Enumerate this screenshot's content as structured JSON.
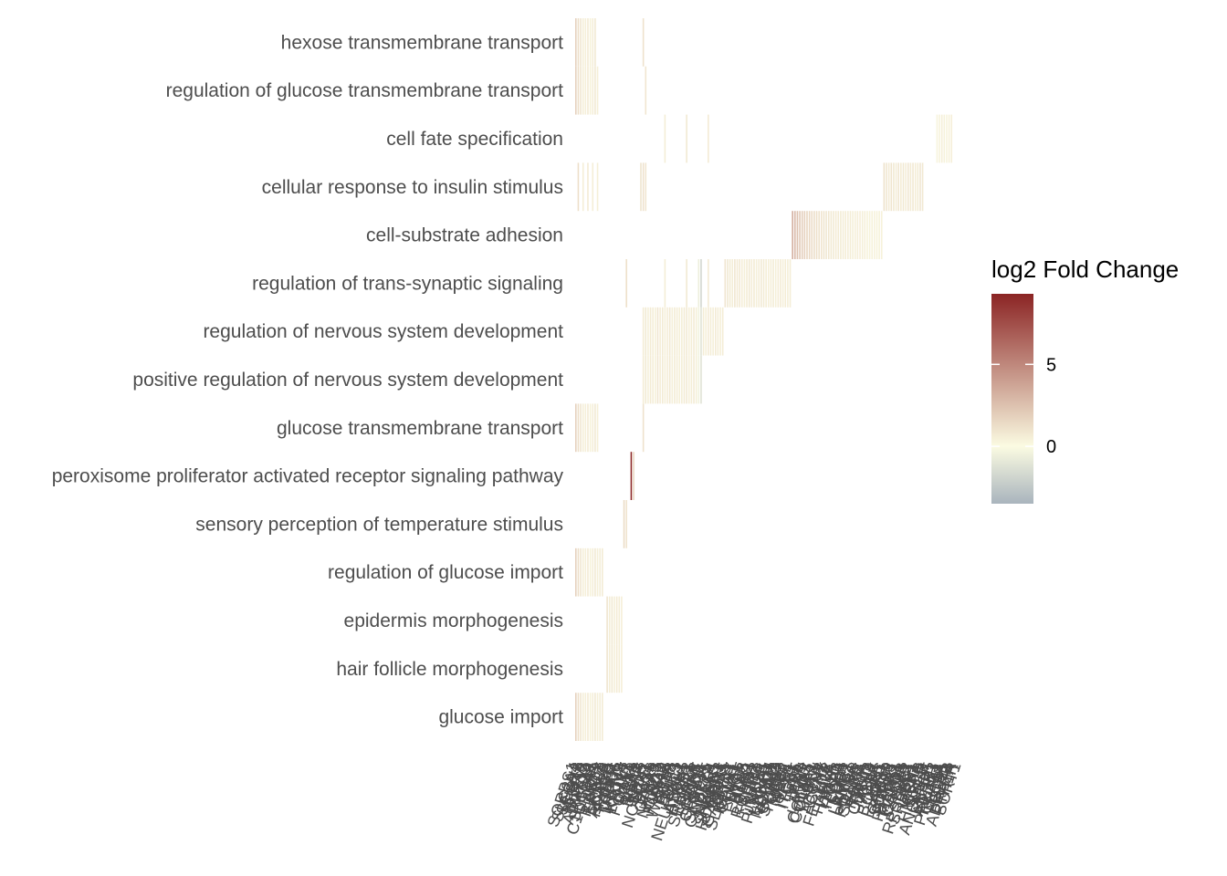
{
  "chart_data": {
    "type": "heatmap",
    "title": "",
    "xlabel": "",
    "ylabel": "",
    "legend": {
      "title": "log2 Fold Change",
      "position": "right",
      "ticks": [
        0,
        5
      ],
      "range": [
        -3.5,
        9.3
      ],
      "colors": {
        "low": "#a9b4bd",
        "mid": "#fbfbe2",
        "high": "#8b2424"
      }
    },
    "grid": false,
    "rows": [
      "hexose transmembrane transport",
      "regulation of glucose transmembrane transport",
      "cell fate specification",
      "cellular response to insulin stimulus",
      "cell-substrate adhesion",
      "regulation of trans-synaptic signaling",
      "regulation of nervous system development",
      "positive regulation of nervous system development",
      "glucose transmembrane transport",
      "peroxisome proliferator activated receptor signaling pathway",
      "sensory perception of temperature stimulus",
      "regulation of glucose import",
      "epidermis morphogenesis",
      "hair follicle morphogenesis",
      "glucose import"
    ],
    "columns": [
      "SORBS1",
      "SLC2A4",
      "SESN2",
      "SIRT6",
      "NR4A3",
      "IRS2",
      "ADIPOQ",
      "RAB10",
      "SLC2A1",
      "C1QTNF1",
      "INSR",
      "AKT2",
      "PRKCZ",
      "ERBB3",
      "CAV3",
      "ACACB",
      "PPARG",
      "FABP4",
      "CD36",
      "TRPV1",
      "TRPM8",
      "KRT14",
      "KRT17",
      "LHX2",
      "FOXN1",
      "SOX9",
      "LEF1",
      "MSX2",
      "EGFR",
      "KRT5",
      "SOX2",
      "NOTCH1",
      "HES1",
      "PAX6",
      "GATA3",
      "TBX3",
      "NKX2-1",
      "OLIG2",
      "FOXA2",
      "SHH",
      "WNT3A",
      "FGF8",
      "BMP4",
      "GLI3",
      "DLL1",
      "NEUROG2",
      "ASCL1",
      "ATOH1",
      "HAND2",
      "ISL1",
      "SEMA3A",
      "NTRK2",
      "BDNF",
      "GRIN1",
      "GRIN2A",
      "SYT1",
      "SNAP25",
      "CAMK2A",
      "DLG4",
      "NRXN1",
      "NLGN1",
      "SHANK3",
      "HOMER1",
      "GRM5",
      "GABRA1",
      "GAD1",
      "SLC17A7",
      "NPTX1",
      "CPLX1",
      "RIMS1",
      "NGF",
      "NTF3",
      "RTN4",
      "MAG",
      "EPHA4",
      "ROBO1",
      "SLIT2",
      "NTN1",
      "DCC",
      "UNC5B",
      "PLXNA1",
      "NRP1",
      "L1CAM",
      "NCAM1",
      "CDH2",
      "GAP43",
      "STMN2",
      "TUBB3",
      "MAP2",
      "NEFL",
      "SPP1",
      "FN1",
      "ITGB1",
      "ITGA5",
      "VCL",
      "TLN1",
      "PXN",
      "PTK2",
      "LAMA5",
      "COL1A1",
      "COL4A1",
      "THBS1",
      "VTN",
      "CCN2",
      "ACTN1",
      "ZYX",
      "FERMT2",
      "ILK",
      "PARVA",
      "LIMS1",
      "ITGA6",
      "ITGB4",
      "CD44",
      "SDC4",
      "EMP2",
      "LAMB1",
      "LAMC1",
      "TNC",
      "POSTN",
      "SPARC",
      "FLNA",
      "RHOA",
      "RAC1",
      "CDC42",
      "MYH9",
      "ABL1",
      "CRK",
      "BCAR1",
      "SRC",
      "PIK3R1",
      "IRS1",
      "GRB10",
      "SOCS3",
      "PTPN1",
      "PTPN11",
      "MAPK1",
      "FOXO1",
      "GSK3B",
      "PDK1",
      "TSC2",
      "RPS6KB1",
      "SREBF1",
      "LPIN1",
      "PCK1",
      "G6PC",
      "HMGCR",
      "LDLR",
      "ANGPTL4",
      "APOE",
      "ENPP1",
      "ADRB3",
      "EDN1",
      "PRKAA1",
      "CPT1A",
      "UCP1",
      "FGF21",
      "LEPR",
      "ADRA2A",
      "PTH1R",
      "SORT1"
    ],
    "cells": [
      {
        "row": 0,
        "cols": [
          0,
          1,
          2,
          3,
          4,
          5,
          6,
          7,
          8,
          28
        ],
        "values": [
          1.8,
          1.2,
          0.9,
          0.6,
          0.5,
          0.7,
          0.4,
          0.6,
          0.8,
          1.1
        ]
      },
      {
        "row": 1,
        "cols": [
          0,
          1,
          2,
          3,
          4,
          5,
          6,
          7,
          8,
          9,
          29
        ],
        "values": [
          1.8,
          1.2,
          0.9,
          0.6,
          0.5,
          0.7,
          0.4,
          0.6,
          0.8,
          0.5,
          0.9
        ]
      },
      {
        "row": 2,
        "cols": [
          37,
          46,
          55,
          150,
          151,
          152,
          153,
          154,
          155,
          156
        ],
        "values": [
          0.6,
          0.8,
          0.7,
          0.3,
          0.4,
          0.5,
          0.4,
          0.3,
          0.4,
          0.5
        ]
      },
      {
        "row": 3,
        "cols": [
          1,
          3,
          5,
          7,
          9,
          27,
          28,
          29,
          128,
          129,
          130,
          131,
          132,
          133,
          134,
          135,
          136,
          137,
          138,
          139,
          140,
          141,
          142,
          143,
          144
        ],
        "values": [
          1.2,
          0.6,
          0.7,
          0.6,
          0.5,
          1.0,
          1.1,
          0.9,
          1.1,
          0.9,
          0.7,
          1.0,
          0.8,
          0.6,
          0.9,
          0.7,
          0.8,
          0.6,
          0.9,
          0.7,
          0.8,
          0.6,
          0.7,
          0.9,
          0.8
        ]
      },
      {
        "row": 4,
        "cols": [
          90,
          91,
          92,
          93,
          94,
          95,
          96,
          97,
          98,
          99,
          100,
          101,
          102,
          103,
          104,
          105,
          106,
          107,
          108,
          109,
          110,
          111,
          112,
          113,
          114,
          115,
          116,
          117,
          118,
          119,
          120,
          121,
          122,
          123,
          124,
          125,
          126,
          127
        ],
        "values": [
          3.4,
          2.8,
          2.5,
          2.2,
          2.0,
          1.8,
          1.6,
          1.5,
          1.4,
          1.3,
          1.2,
          1.1,
          1.0,
          1.0,
          0.9,
          0.9,
          0.8,
          0.8,
          0.7,
          0.7,
          0.7,
          0.6,
          0.6,
          0.6,
          0.6,
          0.5,
          0.5,
          0.5,
          0.5,
          0.5,
          0.5,
          0.4,
          0.4,
          0.4,
          0.4,
          0.4,
          0.4,
          0.4
        ]
      },
      {
        "row": 5,
        "cols": [
          21,
          37,
          46,
          51,
          52,
          55,
          62,
          63,
          64,
          65,
          66,
          67,
          68,
          69,
          70,
          71,
          72,
          73,
          74,
          75,
          76,
          77,
          78,
          79,
          80,
          81,
          82,
          83,
          84,
          85,
          86,
          87,
          88,
          89
        ],
        "values": [
          1.2,
          0.6,
          0.8,
          -0.6,
          -1.8,
          0.7,
          0.9,
          0.8,
          0.7,
          0.6,
          0.9,
          0.7,
          0.8,
          0.6,
          0.5,
          0.7,
          0.8,
          0.6,
          0.7,
          0.5,
          0.6,
          0.8,
          0.7,
          0.6,
          0.5,
          0.6,
          0.7,
          0.5,
          0.6,
          0.7,
          0.5,
          0.6,
          0.5,
          0.6
        ]
      },
      {
        "row": 6,
        "cols": [
          28,
          29,
          30,
          31,
          32,
          33,
          34,
          35,
          36,
          37,
          38,
          39,
          40,
          41,
          42,
          43,
          44,
          45,
          46,
          47,
          48,
          49,
          50,
          51,
          52,
          53,
          54,
          55,
          56,
          57,
          58,
          59,
          60,
          61
        ],
        "values": [
          0.6,
          0.8,
          0.5,
          0.7,
          0.6,
          0.5,
          0.9,
          0.6,
          0.7,
          0.5,
          0.6,
          0.8,
          0.5,
          0.7,
          0.6,
          0.5,
          0.6,
          0.7,
          0.8,
          0.5,
          0.6,
          0.7,
          0.5,
          -0.4,
          -1.2,
          0.6,
          0.5,
          0.7,
          0.6,
          0.5,
          0.7,
          0.6,
          0.5,
          0.6
        ]
      },
      {
        "row": 7,
        "cols": [
          28,
          29,
          30,
          31,
          32,
          33,
          34,
          35,
          36,
          37,
          38,
          39,
          40,
          41,
          42,
          43,
          44,
          45,
          46,
          47,
          48,
          49,
          50,
          51,
          52
        ],
        "values": [
          0.6,
          0.8,
          0.5,
          0.7,
          0.6,
          0.5,
          0.9,
          0.6,
          0.7,
          0.5,
          0.6,
          0.8,
          0.5,
          0.7,
          0.6,
          0.5,
          0.6,
          0.7,
          0.8,
          0.5,
          0.6,
          0.7,
          0.5,
          -0.4,
          -1.2
        ]
      },
      {
        "row": 8,
        "cols": [
          0,
          1,
          2,
          3,
          4,
          5,
          6,
          7,
          8,
          9,
          28
        ],
        "values": [
          1.8,
          1.2,
          0.9,
          0.6,
          0.5,
          0.7,
          0.4,
          0.6,
          0.8,
          0.5,
          1.1
        ]
      },
      {
        "row": 9,
        "cols": [
          23,
          24
        ],
        "values": [
          9.0,
          1.5
        ]
      },
      {
        "row": 10,
        "cols": [
          20,
          21
        ],
        "values": [
          1.4,
          1.0
        ]
      },
      {
        "row": 11,
        "cols": [
          0,
          1,
          2,
          3,
          4,
          5,
          6,
          7,
          8,
          9,
          10,
          11
        ],
        "values": [
          1.8,
          1.2,
          0.9,
          0.6,
          0.5,
          0.7,
          0.4,
          0.6,
          0.8,
          0.5,
          0.6,
          0.7
        ]
      },
      {
        "row": 12,
        "cols": [
          13,
          14,
          15,
          16,
          17,
          18,
          19
        ],
        "values": [
          1.0,
          0.6,
          0.8,
          0.5,
          0.7,
          0.6,
          0.5
        ]
      },
      {
        "row": 13,
        "cols": [
          13,
          14,
          15,
          16,
          17,
          18,
          19
        ],
        "values": [
          1.0,
          0.6,
          0.8,
          0.5,
          0.7,
          0.6,
          0.5
        ]
      },
      {
        "row": 14,
        "cols": [
          0,
          1,
          2,
          3,
          4,
          5,
          6,
          7,
          8,
          9,
          10,
          11
        ],
        "values": [
          1.8,
          1.2,
          0.9,
          0.6,
          0.5,
          0.7,
          0.4,
          0.6,
          0.8,
          0.5,
          0.6,
          0.7
        ]
      }
    ]
  }
}
